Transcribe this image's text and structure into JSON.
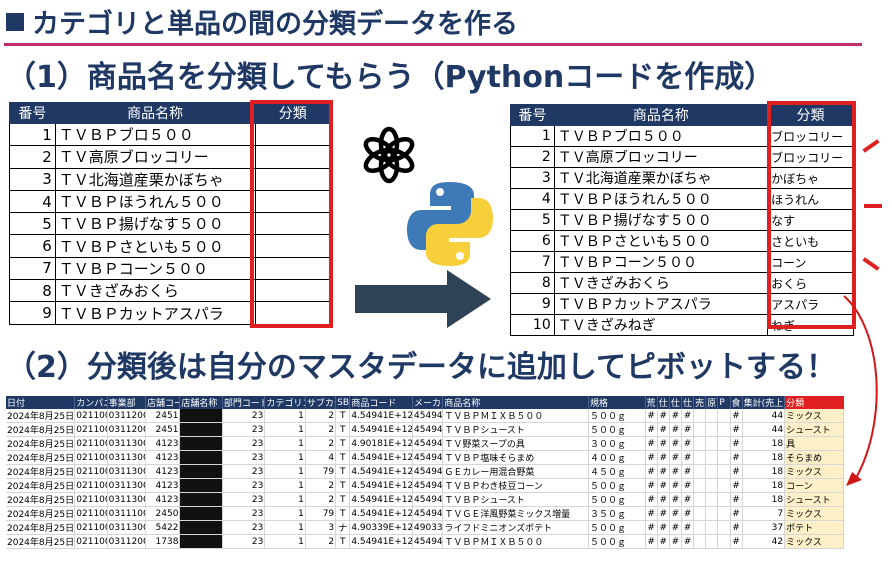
{
  "header": {
    "title": "カテゴリと単品の間の分類データを作る",
    "section1": "（1）商品名を分類してもらう（Pythonコードを作成）",
    "section2": "（2）分類後は自分のマスタデータに追加してピボットする！"
  },
  "left_table": {
    "headers": [
      "番号",
      "商品名称",
      "分類"
    ],
    "rows": [
      {
        "num": "1",
        "name": "ＴＶＢＰブロ５００"
      },
      {
        "num": "2",
        "name": "ＴＶ高原ブロッコリー"
      },
      {
        "num": "3",
        "name": "ＴＶ北海道産栗かぼちゃ"
      },
      {
        "num": "4",
        "name": "ＴＶＢＰほうれん５００"
      },
      {
        "num": "5",
        "name": "ＴＶＢＰ揚げなす５００"
      },
      {
        "num": "6",
        "name": "ＴＶＢＰさといも５００"
      },
      {
        "num": "7",
        "name": "ＴＶＢＰコーン５００"
      },
      {
        "num": "8",
        "name": "ＴＶきざみおくら"
      },
      {
        "num": "9",
        "name": "ＴＶＢＰカットアスパラ"
      }
    ]
  },
  "right_table": {
    "headers": [
      "番号",
      "商品名称",
      "分類"
    ],
    "rows": [
      {
        "num": "1",
        "name": "ＴＶＢＰブロ５００",
        "cat": "ブロッコリー"
      },
      {
        "num": "2",
        "name": "ＴＶ高原ブロッコリー",
        "cat": "ブロッコリー"
      },
      {
        "num": "3",
        "name": "ＴＶ北海道産栗かぼちゃ",
        "cat": "かぼちゃ"
      },
      {
        "num": "4",
        "name": "ＴＶＢＰほうれん５００",
        "cat": "ほうれん"
      },
      {
        "num": "5",
        "name": "ＴＶＢＰ揚げなす５００",
        "cat": "なす"
      },
      {
        "num": "6",
        "name": "ＴＶＢＰさといも５００",
        "cat": "さといも"
      },
      {
        "num": "7",
        "name": "ＴＶＢＰコーン５００",
        "cat": "コーン"
      },
      {
        "num": "8",
        "name": "ＴＶきざみおくら",
        "cat": "おくら"
      },
      {
        "num": "9",
        "name": "ＴＶＢＰカットアスパラ",
        "cat": "アスパラ"
      },
      {
        "num": "10",
        "name": "ＴＶきざみねぎ",
        "cat": "ねぎ"
      }
    ]
  },
  "icons": {
    "openai": "openai-logo-icon",
    "python": "python-logo-icon",
    "arrow": "right-arrow-icon",
    "curved": "curved-arrow-icon"
  },
  "colors": {
    "navy": "#1f3864",
    "accent_red": "#e02020",
    "rule": "#c0306a",
    "classification_fill": "#fdf0c8",
    "arrow": "#2f4356"
  },
  "master_table": {
    "headers": [
      "日付",
      "カンパニー",
      "事業部",
      "店舗コード",
      "店舗名称",
      "部門コード",
      "カテゴリコード",
      "サブカテゴリ",
      "SB",
      "商品コード",
      "メーカー",
      "商品名称",
      "規格",
      "荒",
      "仕",
      "仕",
      "仕",
      "売",
      "原",
      "P",
      "食",
      "集計(売上)",
      "分類"
    ],
    "rows": [
      [
        "2024年8月25日",
        "021100",
        "0311200",
        "2451",
        "",
        "23",
        "1",
        "2",
        "T",
        "4.54941E+12",
        "45494",
        "ＴＶＢＰＭＩＸＢ５００",
        "５００ｇ",
        "#",
        "#",
        "#",
        "#",
        "",
        "",
        "",
        "#",
        "44",
        "ミックス"
      ],
      [
        "2024年8月25日",
        "021100",
        "0311200",
        "2451",
        "",
        "23",
        "1",
        "2",
        "T",
        "4.54941E+12",
        "45494",
        "ＴＶＢＰシュースト",
        "５００ｇ",
        "#",
        "#",
        "#",
        "#",
        "",
        "",
        "",
        "#",
        "44",
        "シュースト"
      ],
      [
        "2024年8月25日",
        "021100",
        "0311300",
        "4123",
        "",
        "23",
        "1",
        "2",
        "T",
        "4.90181E+12",
        "45494",
        "ＴＶ野菜スープの具",
        "３００ｇ",
        "#",
        "#",
        "#",
        "#",
        "",
        "",
        "",
        "#",
        "18",
        "具"
      ],
      [
        "2024年8月25日",
        "021100",
        "0311300",
        "4123",
        "",
        "23",
        "1",
        "4",
        "T",
        "4.54941E+12",
        "45494",
        "ＴＶＢＰ塩味そらまめ",
        "４００ｇ",
        "#",
        "#",
        "#",
        "#",
        "",
        "",
        "",
        "#",
        "18",
        "そらまめ"
      ],
      [
        "2024年8月25日",
        "021100",
        "0311300",
        "4123",
        "",
        "23",
        "1",
        "79",
        "T",
        "4.54941E+12",
        "45494",
        "ＧＥカレー用混合野菜",
        "４５０ｇ",
        "#",
        "#",
        "#",
        "#",
        "",
        "",
        "",
        "#",
        "18",
        "ミックス"
      ],
      [
        "2024年8月25日",
        "021100",
        "0311300",
        "4123",
        "",
        "23",
        "1",
        "2",
        "T",
        "4.54941E+12",
        "45494",
        "ＴＶＢＰわき枝豆コーン",
        "５００ｇ",
        "#",
        "#",
        "#",
        "#",
        "",
        "",
        "",
        "#",
        "18",
        "コーン"
      ],
      [
        "2024年8月25日",
        "021100",
        "0311300",
        "4123",
        "",
        "23",
        "1",
        "2",
        "T",
        "4.54941E+12",
        "45494",
        "ＴＶＢＰシュースト",
        "５００ｇ",
        "#",
        "#",
        "#",
        "#",
        "",
        "",
        "",
        "#",
        "18",
        "シュースト"
      ],
      [
        "2024年8月25日",
        "021100",
        "0311100",
        "2450",
        "",
        "23",
        "1",
        "79",
        "T",
        "4.54941E+12",
        "45494",
        "ＴＶＧＥ洋風野菜ミックス増量",
        "３５０ｇ",
        "#",
        "#",
        "#",
        "#",
        "",
        "",
        "",
        "#",
        "7",
        "ミックス"
      ],
      [
        "2024年8月25日",
        "021100",
        "0311300",
        "5422",
        "",
        "23",
        "1",
        "3",
        "ナ",
        "4.90339E+12",
        "49033",
        "ライフドミニオンズポテト",
        "５００ｇ",
        "#",
        "#",
        "#",
        "#",
        "",
        "",
        "",
        "#",
        "37",
        "ポテト"
      ],
      [
        "2024年8月25日",
        "021100",
        "0311200",
        "1738",
        "",
        "23",
        "1",
        "2",
        "T",
        "4.54941E+12",
        "45494",
        "ＴＶＢＰＭＩＸＢ５００",
        "５００ｇ",
        "#",
        "#",
        "#",
        "#",
        "",
        "",
        "",
        "#",
        "42",
        "ミックス"
      ]
    ]
  }
}
